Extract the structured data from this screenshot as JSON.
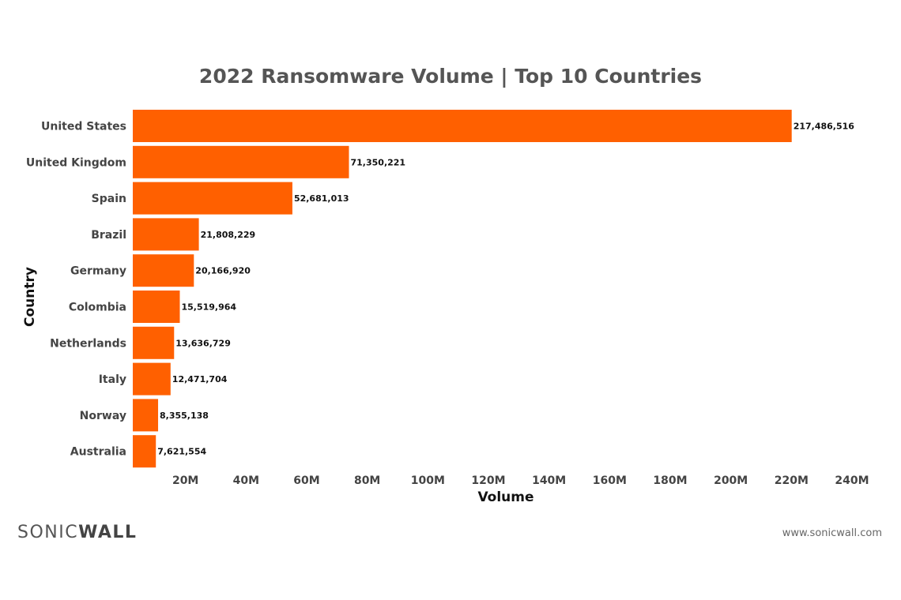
{
  "chart_data": {
    "type": "bar",
    "orientation": "horizontal",
    "title": "2022 Ransomware Volume | Top 10 Countries",
    "xlabel": "Volume",
    "ylabel": "Country",
    "categories": [
      "United States",
      "United Kingdom",
      "Spain",
      "Brazil",
      "Germany",
      "Colombia",
      "Netherlands",
      "Italy",
      "Norway",
      "Australia"
    ],
    "values": [
      217486516,
      71350221,
      52681013,
      21808229,
      20166920,
      15519964,
      13636729,
      12471704,
      8355138,
      7621554
    ],
    "value_labels": [
      "217,486,516",
      "71,350,221",
      "52,681,013",
      "21,808,229",
      "20,166,920",
      "15,519,964",
      "13,636,729",
      "12,471,704",
      "8,355,138",
      "7,621,554"
    ],
    "x_ticks": [
      20000000,
      40000000,
      60000000,
      80000000,
      100000000,
      120000000,
      140000000,
      160000000,
      180000000,
      200000000,
      220000000,
      240000000
    ],
    "x_tick_labels": [
      "20M",
      "40M",
      "60M",
      "80M",
      "100M",
      "120M",
      "140M",
      "160M",
      "180M",
      "200M",
      "220M",
      "240M"
    ],
    "xlim": [
      0,
      240000000
    ],
    "bar_color": "#ff6000",
    "grid": false,
    "legend": "none"
  },
  "footer": {
    "logo_part1": "SONIC",
    "logo_part2": "WALL",
    "website": "www.sonicwall.com"
  }
}
